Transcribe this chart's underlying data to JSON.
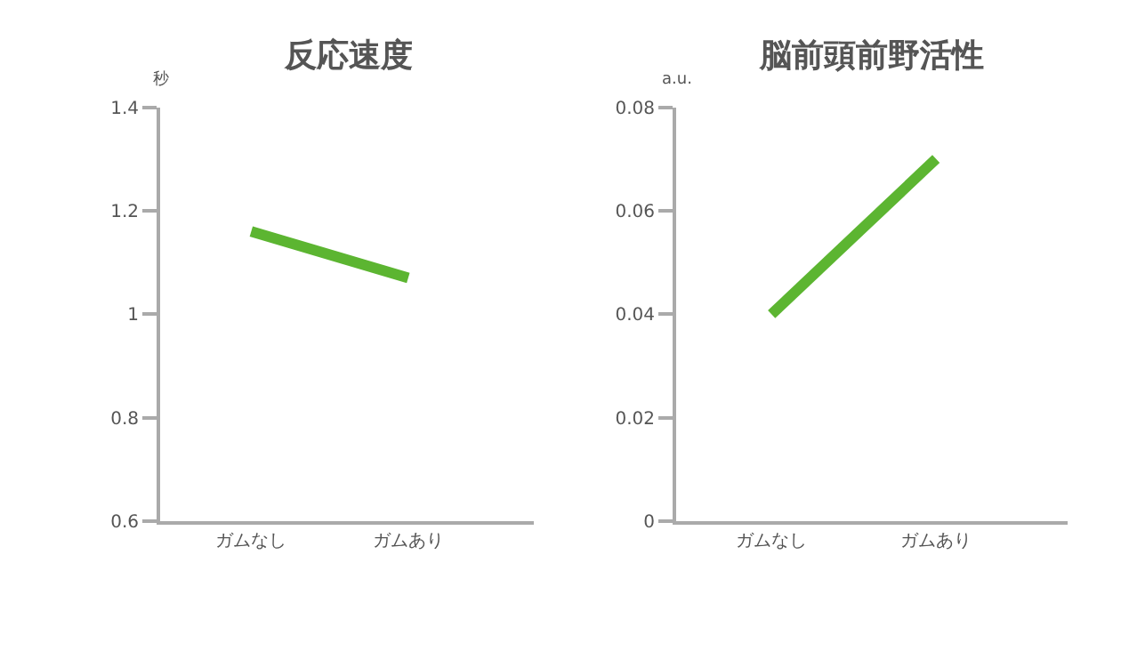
{
  "chart_data": [
    {
      "type": "line",
      "title": "反応速度",
      "ylabel": "秒",
      "categories": [
        "ガムなし",
        "ガムあり"
      ],
      "values": [
        1.16,
        1.07
      ],
      "color": "#5cb531",
      "ylim": [
        0.6,
        1.4
      ],
      "yticks": [
        0.6,
        0.8,
        1,
        1.2,
        1.4
      ]
    },
    {
      "type": "line",
      "title": "脳前頭前野活性",
      "ylabel": "a.u.",
      "categories": [
        "ガムなし",
        "ガムあり"
      ],
      "values": [
        0.04,
        0.07
      ],
      "color": "#5cb531",
      "ylim": [
        0,
        0.08
      ],
      "yticks": [
        0,
        0.02,
        0.04,
        0.06,
        0.08
      ]
    }
  ]
}
